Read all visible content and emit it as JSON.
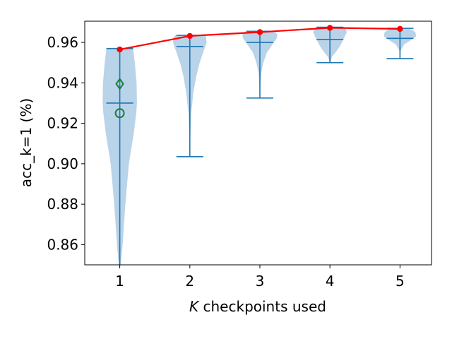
{
  "chart_data": {
    "type": "violin",
    "xlabel_italic": "K",
    "xlabel_rest": " checkpoints used",
    "ylabel": "acc_k=1 (%)",
    "xlim": [
      0.5,
      5.45
    ],
    "ylim": [
      0.85,
      0.9705
    ],
    "x_ticks": [
      1,
      2,
      3,
      4,
      5
    ],
    "y_ticks": [
      0.86,
      0.88,
      0.9,
      0.92,
      0.94,
      0.96
    ],
    "y_tick_labels": [
      "0.86",
      "0.88",
      "0.90",
      "0.92",
      "0.94",
      "0.96"
    ],
    "colors": {
      "violin_fill": "#a8c8e4",
      "violin_line": "#1f77b4",
      "max_line": "#ff0000",
      "markers": "#1a7f37"
    },
    "violins": [
      {
        "k": 1,
        "min": 0.845,
        "max": 0.957,
        "mean": 0.93,
        "profile": [
          [
            0.845,
            0.002
          ],
          [
            0.86,
            0.04
          ],
          [
            0.88,
            0.08
          ],
          [
            0.9,
            0.13
          ],
          [
            0.915,
            0.2
          ],
          [
            0.925,
            0.235
          ],
          [
            0.93,
            0.245
          ],
          [
            0.94,
            0.24
          ],
          [
            0.95,
            0.215
          ],
          [
            0.957,
            0.19
          ]
        ]
      },
      {
        "k": 2,
        "min": 0.9035,
        "max": 0.9635,
        "mean": 0.958,
        "profile": [
          [
            0.9035,
            0.004
          ],
          [
            0.915,
            0.008
          ],
          [
            0.925,
            0.02
          ],
          [
            0.935,
            0.05
          ],
          [
            0.943,
            0.09
          ],
          [
            0.95,
            0.14
          ],
          [
            0.955,
            0.19
          ],
          [
            0.96,
            0.24
          ],
          [
            0.963,
            0.23
          ],
          [
            0.9635,
            0.2
          ]
        ]
      },
      {
        "k": 3,
        "min": 0.9325,
        "max": 0.9655,
        "mean": 0.96,
        "profile": [
          [
            0.9325,
            0.003
          ],
          [
            0.94,
            0.008
          ],
          [
            0.945,
            0.02
          ],
          [
            0.95,
            0.05
          ],
          [
            0.955,
            0.1
          ],
          [
            0.958,
            0.16
          ],
          [
            0.962,
            0.24
          ],
          [
            0.964,
            0.25
          ],
          [
            0.9655,
            0.2
          ]
        ]
      },
      {
        "k": 4,
        "min": 0.95,
        "max": 0.9675,
        "mean": 0.9615,
        "profile": [
          [
            0.95,
            0.004
          ],
          [
            0.953,
            0.03
          ],
          [
            0.955,
            0.08
          ],
          [
            0.958,
            0.14
          ],
          [
            0.962,
            0.2
          ],
          [
            0.965,
            0.24
          ],
          [
            0.967,
            0.22
          ],
          [
            0.9675,
            0.18
          ]
        ]
      },
      {
        "k": 5,
        "min": 0.952,
        "max": 0.967,
        "mean": 0.962,
        "profile": [
          [
            0.952,
            0.004
          ],
          [
            0.956,
            0.01
          ],
          [
            0.959,
            0.06
          ],
          [
            0.961,
            0.15
          ],
          [
            0.963,
            0.23
          ],
          [
            0.965,
            0.22
          ],
          [
            0.966,
            0.18
          ],
          [
            0.967,
            0.12
          ]
        ]
      }
    ],
    "max_curve": {
      "x": [
        1,
        2,
        3,
        4,
        5
      ],
      "y": [
        0.9565,
        0.9632,
        0.9651,
        0.9672,
        0.9667
      ]
    },
    "extra_markers": [
      {
        "shape": "diamond",
        "x": 1,
        "y": 0.9395
      },
      {
        "shape": "circle",
        "x": 1,
        "y": 0.925
      }
    ]
  }
}
